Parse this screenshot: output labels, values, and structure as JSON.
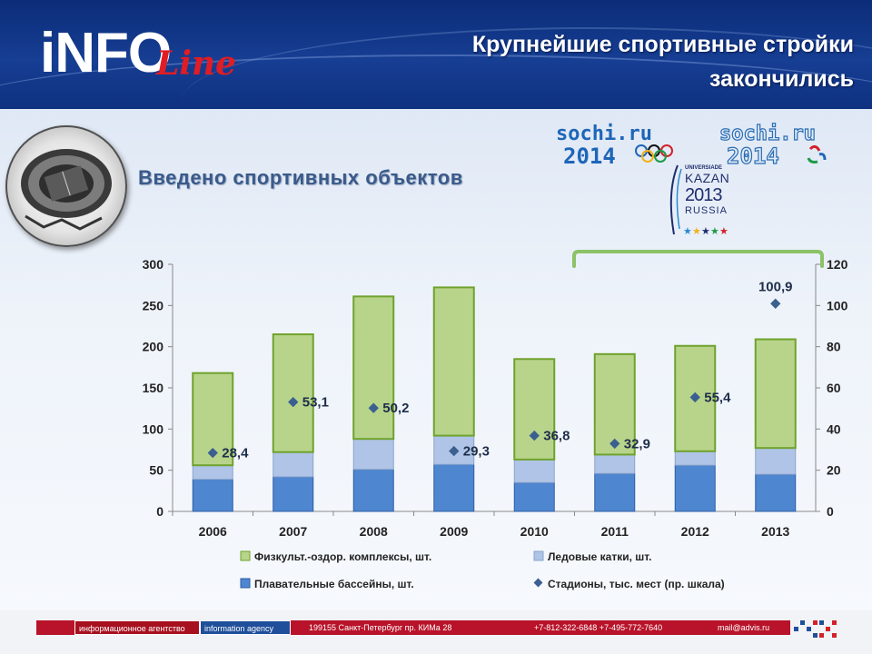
{
  "header": {
    "logo_main": "iNFO",
    "logo_script": "Line",
    "title_line1": "Крупнейшие спортивные стройки",
    "title_line2": "закончились"
  },
  "subtitle": "Введено спортивных объектов",
  "logos": {
    "sochi1": {
      "top": "sochi.ru",
      "bottom": "2014"
    },
    "sochi2": {
      "top": "sochi.ru",
      "bottom": "2014"
    },
    "kazan": {
      "universiade": "UNIVERSIADE",
      "city": "KAZAN",
      "year": "2013",
      "country": "RUSSIA"
    }
  },
  "colors": {
    "green": "#b8d48a",
    "green_border": "#6fa22d",
    "lightblue": "#afc4e6",
    "blue": "#4f86d0",
    "blue_border": "#2c5ea5",
    "marker": "#3b5f8f",
    "bracket": "#8cc268"
  },
  "chart_data": {
    "type": "bar",
    "stacked": true,
    "categories": [
      "2006",
      "2007",
      "2008",
      "2009",
      "2010",
      "2011",
      "2012",
      "2013"
    ],
    "series": [
      {
        "name": "Плавательные бассейны, шт.",
        "values": [
          39,
          42,
          51,
          57,
          35,
          46,
          56,
          45
        ],
        "axis": "left"
      },
      {
        "name": "Ледовые катки, шт.",
        "values": [
          17,
          30,
          37,
          35,
          28,
          23,
          17,
          32
        ],
        "axis": "left"
      },
      {
        "name": "Физкульт.-оздор. комплексы, шт.",
        "values": [
          112,
          143,
          173,
          180,
          122,
          122,
          128,
          132
        ],
        "axis": "left"
      },
      {
        "name": "Стадионы,  тыс. мест (пр. шкала)",
        "values": [
          28.4,
          53.1,
          50.2,
          29.3,
          36.8,
          32.9,
          55.4,
          100.9
        ],
        "axis": "right",
        "type": "scatter"
      }
    ],
    "data_labels": [
      "28,4",
      "53,1",
      "50,2",
      "29,3",
      "36,8",
      "32,9",
      "55,4",
      "100,9"
    ],
    "ylim": [
      0,
      300
    ],
    "yticks": [
      "0",
      "50",
      "100",
      "150",
      "200",
      "250",
      "300"
    ],
    "y2lim": [
      0,
      120
    ],
    "y2ticks": [
      "0",
      "20",
      "40",
      "60",
      "80",
      "100",
      "120"
    ],
    "legend": [
      "Физкульт.-оздор. комплексы, шт.",
      "Ледовые катки, шт.",
      "Плавательные бассейны, шт.",
      "Стадионы,  тыс. мест (пр. шкала)"
    ],
    "legend_position": "bottom",
    "grid": false
  },
  "footer": {
    "agency_ru": "информационное агентство",
    "agency_en": "information agency",
    "address": "199155 Санкт-Петербург  пр. КИМа 28",
    "phones": "+7-812-322-6848  +7-495-772-7640",
    "email": "mail@advis.ru"
  }
}
